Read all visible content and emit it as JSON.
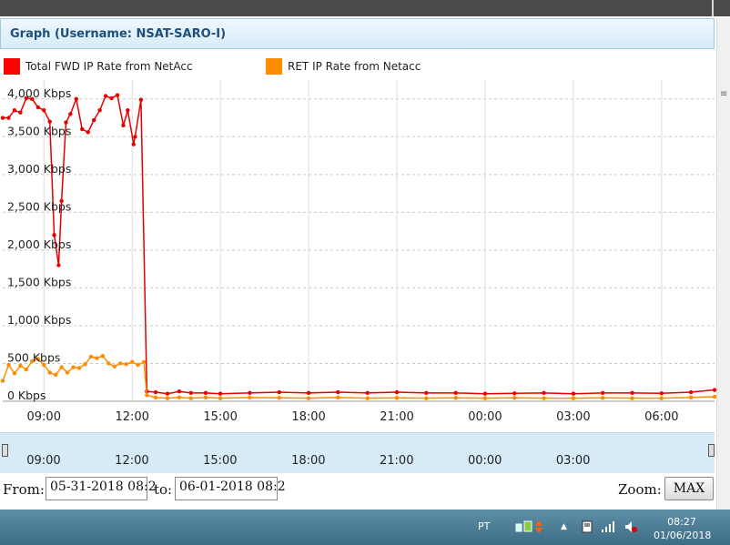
{
  "panel": {
    "title": "Graph (Username: NSAT-SARO-I)"
  },
  "legend": [
    {
      "label": "Total FWD IP Rate from NetAcc",
      "color": "#ff0000"
    },
    {
      "label": "RET IP Rate from Netacc",
      "color": "#ff8c00"
    }
  ],
  "chart_data": {
    "type": "line",
    "title": "",
    "xlabel": "",
    "ylabel": "",
    "y_ticks": [
      "4,000 Kbps",
      "3,500 Kbps",
      "3,000 Kbps",
      "2,500 Kbps",
      "2,000 Kbps",
      "1,500 Kbps",
      "1,000 Kbps",
      "500 Kbps",
      "0 Kbps"
    ],
    "y_tick_values": [
      4000,
      3500,
      3000,
      2500,
      2000,
      1500,
      1000,
      500,
      0
    ],
    "ylim": [
      0,
      4250
    ],
    "x_ticks": [
      "09:00",
      "12:00",
      "15:00",
      "18:00",
      "21:00",
      "00:00",
      "03:00",
      "06:00"
    ],
    "x_tick_hours": [
      9,
      12,
      15,
      18,
      21,
      24,
      27,
      30
    ],
    "xlim": [
      7.6,
      31.8
    ],
    "grid": true,
    "series": [
      {
        "name": "Total FWD IP Rate from NetAcc",
        "color": "#e60000",
        "x": [
          7.6,
          7.8,
          8.0,
          8.2,
          8.4,
          8.6,
          8.8,
          9.0,
          9.2,
          9.35,
          9.5,
          9.6,
          9.75,
          9.9,
          10.1,
          10.3,
          10.5,
          10.7,
          10.9,
          11.1,
          11.3,
          11.5,
          11.7,
          11.85,
          12.05,
          12.1,
          12.3,
          12.5,
          12.8,
          13.2,
          13.6,
          14.0,
          14.5,
          15.0,
          16.0,
          17.0,
          18.0,
          19.0,
          20.0,
          21.0,
          22.0,
          23.0,
          24.0,
          25.0,
          26.0,
          27.0,
          28.0,
          29.0,
          30.0,
          31.0,
          31.8
        ],
        "y": [
          3750,
          3750,
          3850,
          3820,
          4010,
          4000,
          3890,
          3850,
          3700,
          2200,
          1800,
          2650,
          3690,
          3800,
          4000,
          3600,
          3560,
          3720,
          3850,
          4040,
          4010,
          4050,
          3650,
          3850,
          3400,
          3500,
          3990,
          130,
          120,
          100,
          130,
          110,
          110,
          100,
          110,
          120,
          110,
          120,
          110,
          120,
          110,
          110,
          100,
          105,
          110,
          100,
          110,
          110,
          105,
          120,
          150
        ]
      },
      {
        "name": "RET IP Rate from Netacc",
        "color": "#ff8c00",
        "x": [
          7.6,
          7.8,
          8.0,
          8.2,
          8.4,
          8.6,
          8.8,
          9.0,
          9.2,
          9.4,
          9.6,
          9.8,
          10.0,
          10.2,
          10.4,
          10.6,
          10.8,
          11.0,
          11.2,
          11.4,
          11.6,
          11.8,
          12.0,
          12.2,
          12.4,
          12.5,
          12.8,
          13.2,
          13.6,
          14.0,
          14.5,
          15.0,
          16.0,
          17.0,
          18.0,
          19.0,
          20.0,
          21.0,
          22.0,
          23.0,
          24.0,
          25.0,
          26.0,
          27.0,
          28.0,
          29.0,
          30.0,
          31.0,
          31.8
        ],
        "y": [
          270,
          480,
          370,
          470,
          420,
          530,
          560,
          480,
          380,
          350,
          450,
          380,
          450,
          440,
          490,
          590,
          570,
          600,
          500,
          460,
          500,
          490,
          520,
          480,
          520,
          80,
          50,
          40,
          50,
          40,
          50,
          40,
          50,
          45,
          40,
          50,
          40,
          45,
          40,
          45,
          40,
          45,
          40,
          40,
          45,
          40,
          40,
          50,
          60
        ]
      }
    ]
  },
  "navigator": {
    "labels": [
      "09:00",
      "12:00",
      "15:00",
      "18:00",
      "21:00",
      "00:00",
      "03:00"
    ]
  },
  "range": {
    "from_label": "From:",
    "from_value": "05-31-2018 08:2",
    "to_label": "to:",
    "to_value": "06-01-2018 08:2",
    "zoom_label": "Zoom:",
    "zoom_button": "MAX"
  },
  "taskbar": {
    "lang": "PT",
    "time": "08:27",
    "date": "01/06/2018"
  }
}
